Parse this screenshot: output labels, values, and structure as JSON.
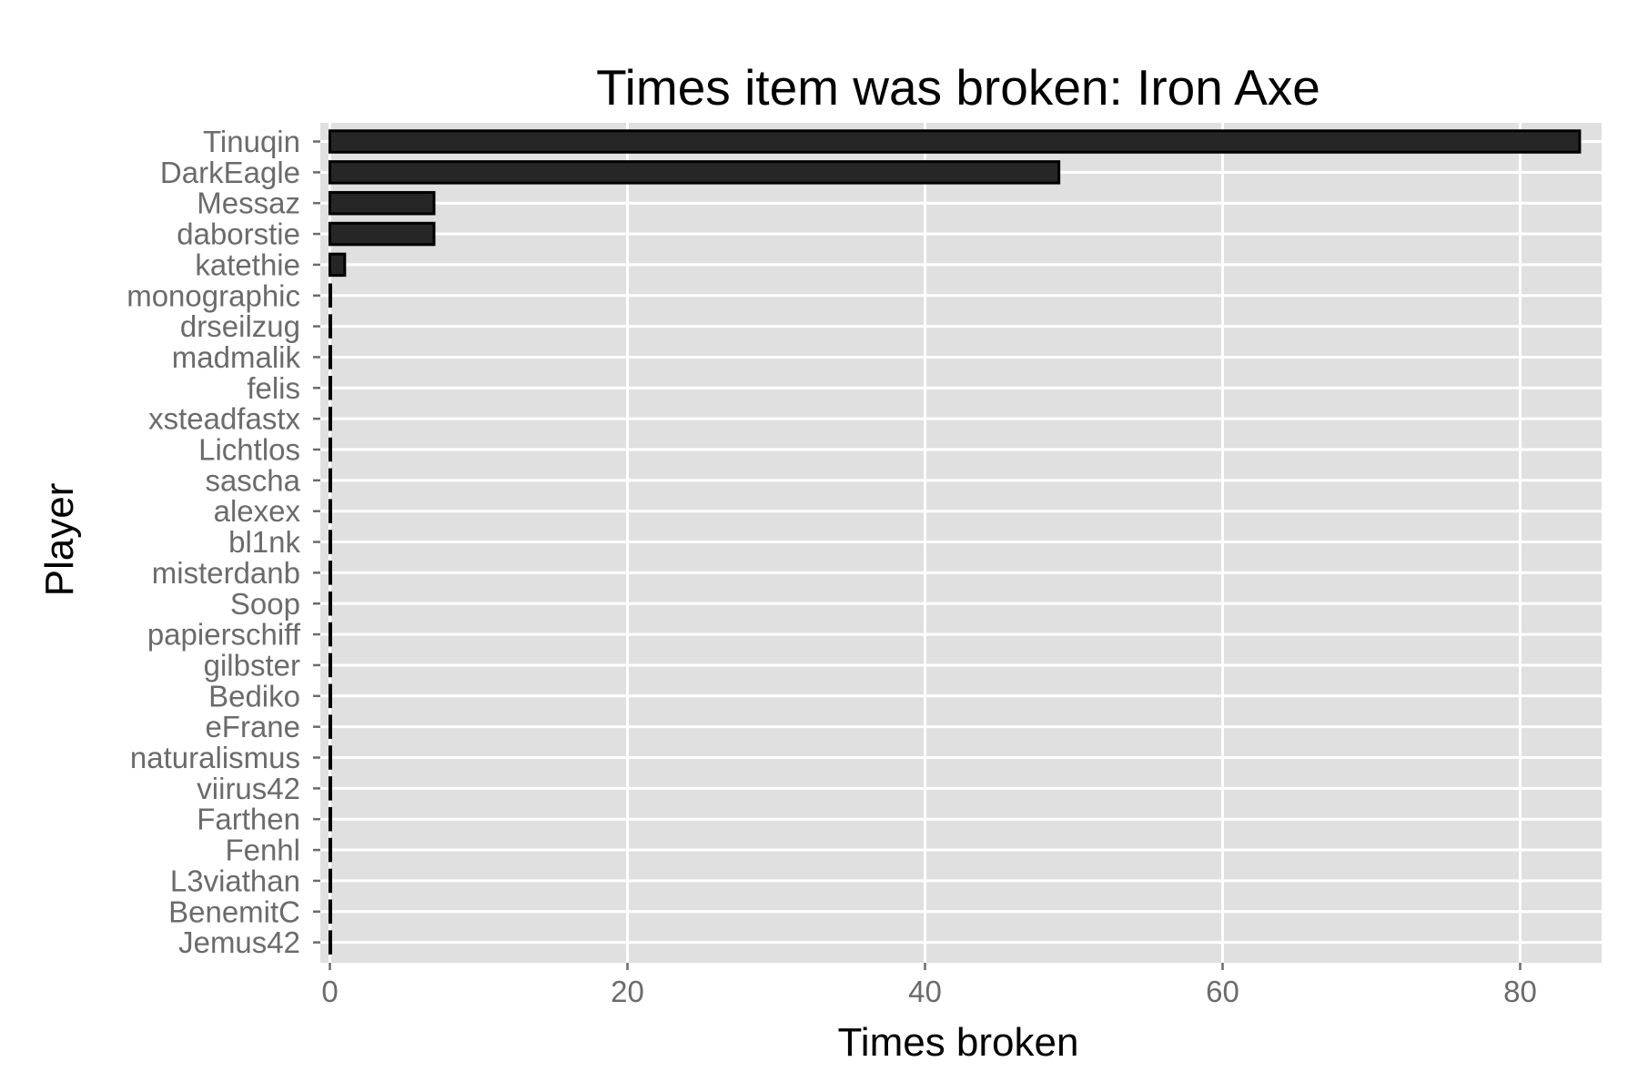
{
  "chart_data": {
    "type": "bar",
    "orientation": "horizontal",
    "title": "Times item was broken: Iron Axe",
    "xlabel": "Times broken",
    "ylabel": "Player",
    "categories": [
      "Tinuqin",
      "DarkEagle",
      "Messaz",
      "daborstie",
      "katethie",
      "monographic",
      "drseilzug",
      "madmalik",
      "felis",
      "xsteadfastx",
      "Lichtlos",
      "sascha",
      "alexex",
      "bl1nk",
      "misterdanb",
      "Soop",
      "papierschiff",
      "gilbster",
      "Bediko",
      "eFrane",
      "naturalismus",
      "viirus42",
      "Farthen",
      "Fenhl",
      "L3viathan",
      "BenemitC",
      "Jemus42"
    ],
    "values": [
      84,
      49,
      7,
      7,
      1,
      0,
      0,
      0,
      0,
      0,
      0,
      0,
      0,
      0,
      0,
      0,
      0,
      0,
      0,
      0,
      0,
      0,
      0,
      0,
      0,
      0,
      0
    ],
    "xlim": [
      0,
      85.7
    ],
    "xticks": [
      0,
      20,
      40,
      60,
      80
    ],
    "grid": true,
    "legend": "none",
    "colors": {
      "bar_fill": "#262626",
      "bar_outline": "#000000",
      "panel_background": "#e0e0e0",
      "gridline": "#ffffff"
    }
  }
}
